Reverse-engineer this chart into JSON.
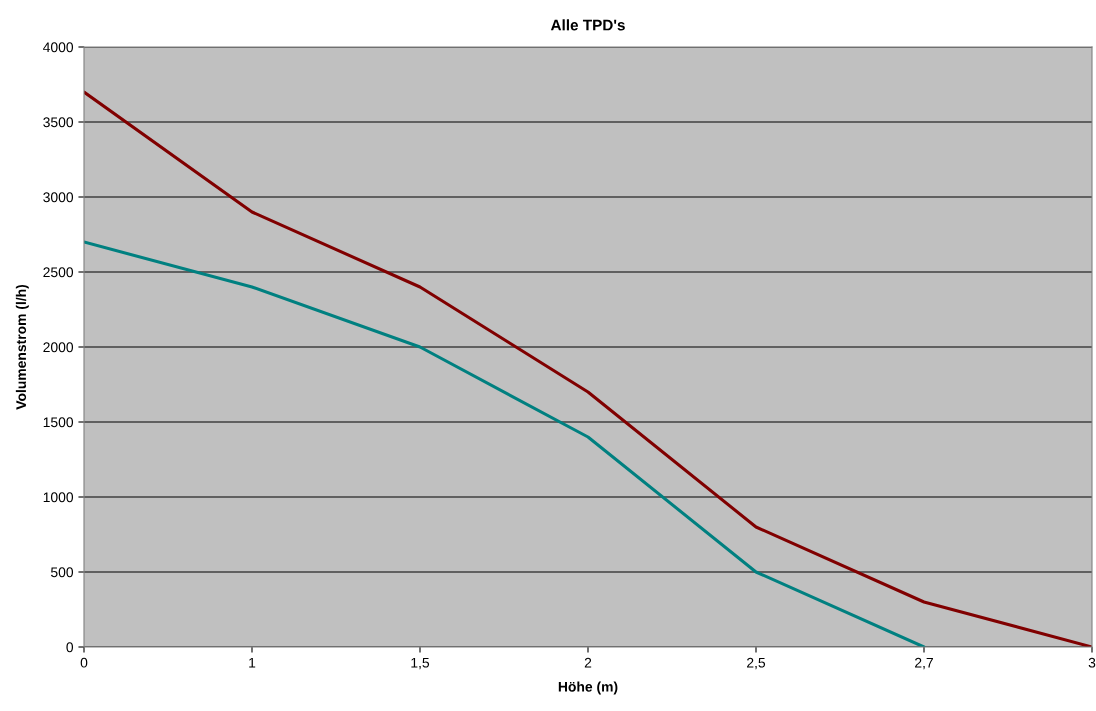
{
  "chart_data": {
    "type": "line",
    "title": "Alle TPD's",
    "xlabel": "Höhe (m)",
    "ylabel": "Volumenstrom (l/h)",
    "categories": [
      "0",
      "1",
      "1,5",
      "2",
      "2,5",
      "2,7",
      "3"
    ],
    "series": [
      {
        "color": "#800000",
        "values": [
          3700,
          2900,
          2400,
          1700,
          800,
          300,
          0
        ]
      },
      {
        "color": "#008080",
        "values": [
          2700,
          2400,
          2000,
          1400,
          500,
          0,
          null
        ]
      }
    ],
    "ylim": [
      0,
      4000
    ],
    "yticks": [
      0,
      500,
      1000,
      1500,
      2000,
      2500,
      3000,
      3500,
      4000
    ],
    "grid": "y",
    "marker": "none",
    "line_style": "solid"
  }
}
